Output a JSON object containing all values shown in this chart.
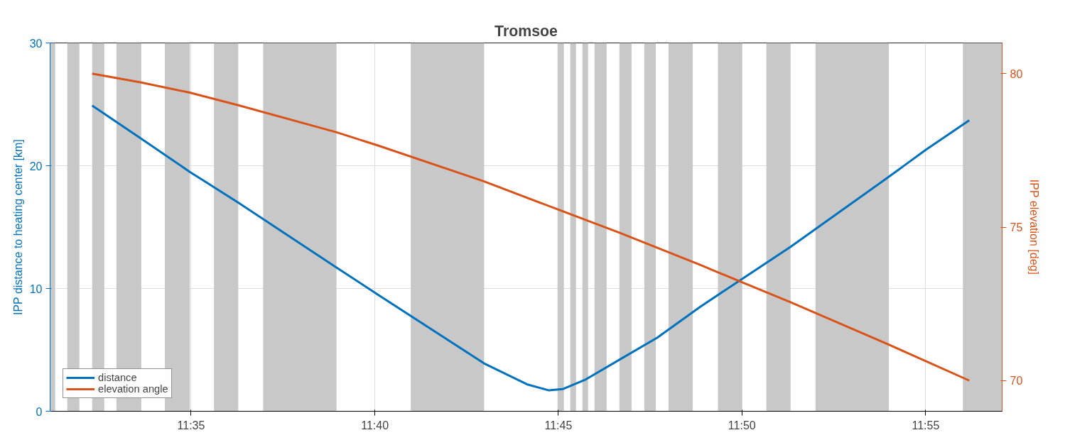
{
  "chart_data": {
    "type": "line",
    "title": "Tromsoe",
    "ylabel": "IPP distance to heating center [km]",
    "y2label": "IPP elevation [deg]",
    "series": [
      {
        "name": "distance",
        "color": "#0072bd",
        "x": [
          11.5384,
          11.5607,
          11.5827,
          11.6047,
          11.6493,
          11.6681,
          11.7163,
          11.7357,
          11.7457,
          11.7519,
          11.7625,
          11.7777,
          11.7949,
          11.8143,
          11.8327,
          11.8554,
          11.9,
          11.9168,
          11.9365
        ],
        "values": [
          24.9,
          22.2,
          19.5,
          17.0,
          11.7,
          9.5,
          3.9,
          2.2,
          1.7,
          1.8,
          2.6,
          4.2,
          6.0,
          8.5,
          10.7,
          13.4,
          19.1,
          21.3,
          23.7
        ]
      },
      {
        "name": "elevation angle",
        "color": "#d95319",
        "axis": "y2",
        "x": [
          11.5384,
          11.5607,
          11.5827,
          11.6047,
          11.6493,
          11.6681,
          11.7163,
          11.7496,
          11.7777,
          11.8143,
          11.8327,
          11.8554,
          11.9,
          11.9365
        ],
        "values": [
          80.0,
          79.71,
          79.38,
          78.97,
          78.09,
          77.66,
          76.49,
          75.58,
          74.82,
          73.77,
          73.22,
          72.55,
          71.17,
          70.0
        ]
      }
    ],
    "xlim": [
      11.5193,
      11.9514
    ],
    "xticks": [
      {
        "value": 11.5833,
        "label": "11:35"
      },
      {
        "value": 11.6667,
        "label": "11:40"
      },
      {
        "value": 11.75,
        "label": "11:45"
      },
      {
        "value": 11.8333,
        "label": "11:50"
      },
      {
        "value": 11.9167,
        "label": "11:55"
      }
    ],
    "ylim": [
      0,
      30
    ],
    "yticks": [
      0,
      10,
      20,
      30
    ],
    "y2lim": [
      69,
      81
    ],
    "y2ticks": [
      70,
      75,
      80
    ],
    "bands": [
      {
        "axis": "x",
        "from": 11.5193,
        "to": 11.5216,
        "color": "#c8c8c8"
      },
      {
        "axis": "x",
        "from": 11.5271,
        "to": 11.5326,
        "color": "#c8c8c8"
      },
      {
        "axis": "x",
        "from": 11.5384,
        "to": 11.5439,
        "color": "#c8c8c8"
      },
      {
        "axis": "x",
        "from": 11.5494,
        "to": 11.5607,
        "color": "#c8c8c8"
      },
      {
        "axis": "x",
        "from": 11.5714,
        "to": 11.5827,
        "color": "#c8c8c8"
      },
      {
        "axis": "x",
        "from": 11.5937,
        "to": 11.6047,
        "color": "#c8c8c8"
      },
      {
        "axis": "x",
        "from": 11.616,
        "to": 11.6493,
        "color": "#c8c8c8"
      },
      {
        "axis": "x",
        "from": 11.683,
        "to": 11.7163,
        "color": "#c8c8c8"
      },
      {
        "axis": "x",
        "from": 11.7496,
        "to": 11.7525,
        "color": "#c8c8c8"
      },
      {
        "axis": "x",
        "from": 11.7554,
        "to": 11.758,
        "color": "#c8c8c8"
      },
      {
        "axis": "x",
        "from": 11.7609,
        "to": 11.7635,
        "color": "#c8c8c8"
      },
      {
        "axis": "x",
        "from": 11.7664,
        "to": 11.7719,
        "color": "#c8c8c8"
      },
      {
        "axis": "x",
        "from": 11.7777,
        "to": 11.7832,
        "color": "#c8c8c8"
      },
      {
        "axis": "x",
        "from": 11.789,
        "to": 11.7942,
        "color": "#c8c8c8"
      },
      {
        "axis": "x",
        "from": 11.8,
        "to": 11.811,
        "color": "#c8c8c8"
      },
      {
        "axis": "x",
        "from": 11.8224,
        "to": 11.8333,
        "color": "#c8c8c8"
      },
      {
        "axis": "x",
        "from": 11.8444,
        "to": 11.8554,
        "color": "#c8c8c8"
      },
      {
        "axis": "x",
        "from": 11.8667,
        "to": 11.9,
        "color": "#c8c8c8"
      },
      {
        "axis": "x",
        "from": 11.9336,
        "to": 11.9514,
        "color": "#c8c8c8"
      }
    ],
    "grid": true,
    "legend": "bottom left"
  }
}
